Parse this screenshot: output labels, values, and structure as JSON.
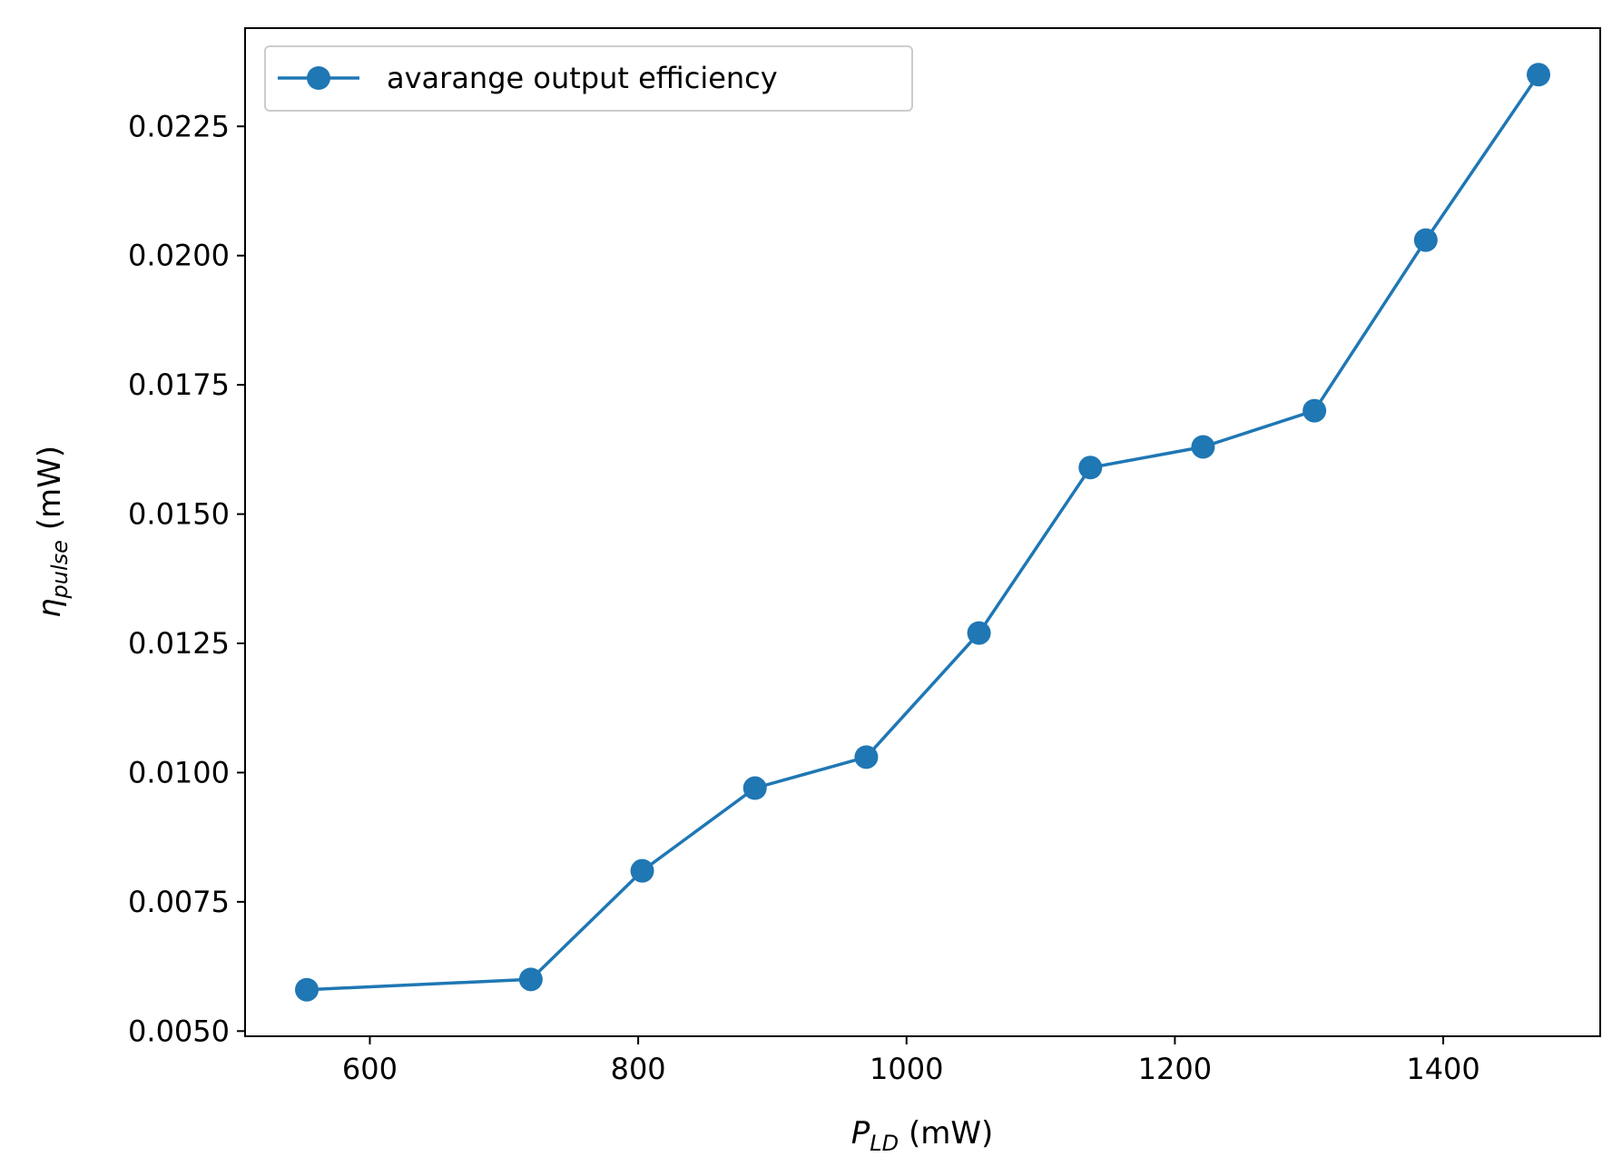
{
  "chart_data": {
    "type": "line",
    "x": [
      553,
      720,
      803,
      887,
      970,
      1054,
      1137,
      1221,
      1304,
      1387,
      1471
    ],
    "series": [
      {
        "name": "avarange output efficiency",
        "values": [
          0.0058,
          0.006,
          0.0081,
          0.0097,
          0.0103,
          0.0127,
          0.0159,
          0.0163,
          0.017,
          0.0203,
          0.0235
        ],
        "color": "#1f77b4",
        "marker": "circle"
      }
    ],
    "xlabel_main": "P",
    "xlabel_sub": "LD",
    "xlabel_unit": " (mW)",
    "ylabel_main": "η",
    "ylabel_sub": "pulse",
    "ylabel_unit": " (mW)",
    "xlim": [
      507,
      1517
    ],
    "ylim": [
      0.0049,
      0.0244
    ],
    "xticks": [
      600,
      800,
      1000,
      1200,
      1400
    ],
    "xtick_labels": [
      "600",
      "800",
      "1000",
      "1200",
      "1400"
    ],
    "yticks": [
      0.005,
      0.0075,
      0.01,
      0.0125,
      0.015,
      0.0175,
      0.02,
      0.0225
    ],
    "ytick_labels": [
      "0.0050",
      "0.0075",
      "0.0100",
      "0.0125",
      "0.0150",
      "0.0175",
      "0.0200",
      "0.0225"
    ],
    "grid": false,
    "legend_position": "top-left"
  }
}
